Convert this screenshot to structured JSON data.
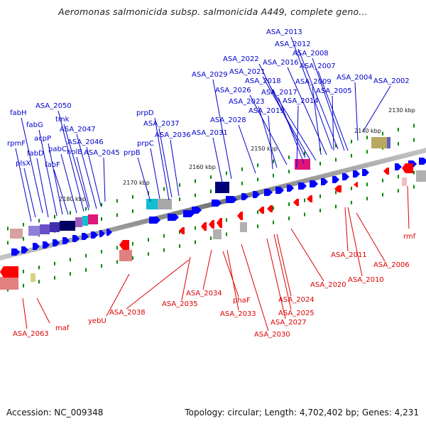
{
  "title": "Aeromonas salmonicida subsp. salmonicida A449, complete geno...",
  "footer": {
    "accession": "Accession: NC_009348",
    "topology": "Topology: circular; Length: 4,702,402 bp; Genes: 4,231"
  },
  "colors": {
    "forward_gene": "#0000ff",
    "reverse_gene": "#ff0000",
    "backbone": "#888888",
    "tick": "#008800",
    "label_forward": "#0000cc",
    "label_reverse": "#dd0000"
  },
  "scale_ticks": [
    "2130 kbp",
    "2140 kbp",
    "2150 kbp",
    "2160 kbp",
    "2170 kbp",
    "2180 kbp"
  ],
  "forward_labels": [
    "ASA_2013",
    "ASA_2012",
    "ASA_2008",
    "ASA_2022",
    "ASA_2016",
    "ASA_2007",
    "ASA_2021",
    "ASA_2029",
    "ASA_2004",
    "ASA_2002",
    "ASA_2018",
    "ASA_2009",
    "ASA_2026",
    "ASA_2017",
    "ASA_2005",
    "ASA_2023",
    "ASA_2014",
    "ASA_2019",
    "ASA_2050",
    "ASA_2028",
    "fabH",
    "tmk",
    "prpD",
    "fabG",
    "ASA_2047",
    "ASA_2037",
    "acpP",
    "ASA_2036",
    "ASA_2031",
    "rpmF",
    "pabC",
    "ASA_2046",
    "prpC",
    "fabD",
    "holB",
    "prpB",
    "ASA_2045",
    "plsX",
    "fabF"
  ],
  "reverse_labels": [
    "rmf",
    "ASA_2011",
    "ASA_2006",
    "ASA_2010",
    "ASA_2020",
    "ASA_2024",
    "ASA_2034",
    "phaF",
    "ASA_2035",
    "ASA_2025",
    "ASA_2038",
    "ASA_2033",
    "ASA_2027",
    "yebU",
    "maf",
    "ASA_2030",
    "ASA_2063"
  ]
}
